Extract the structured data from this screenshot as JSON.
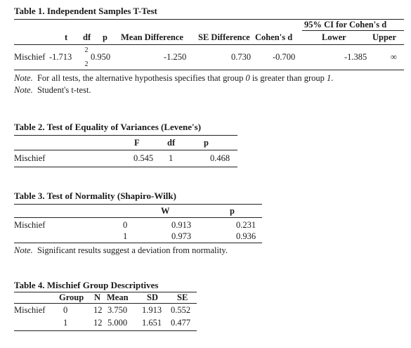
{
  "table1": {
    "title": "Table 1. Independent Samples T-Test",
    "ci_group": "95% CI for Cohen's d",
    "headers": {
      "t": "t",
      "df": "df",
      "p": "p",
      "mean_diff": "Mean Difference",
      "se_diff": "SE Difference",
      "cohens_d": "Cohen's d",
      "lower": "Lower",
      "upper": "Upper"
    },
    "row": {
      "label": "Mischief",
      "t": "-1.713",
      "df_top": "2",
      "df_bottom": "2",
      "p": "0.950",
      "mean_diff": "-1.250",
      "se_diff": "0.730",
      "cohens_d": "-0.700",
      "lower": "-1.385",
      "upper": "∞"
    },
    "notes": [
      {
        "lead": "Note.",
        "text_before": "For all tests, the alternative hypothesis specifies that group ",
        "g0": "0",
        "text_mid": " is greater than group ",
        "g1": "1",
        "text_after": "."
      },
      {
        "lead": "Note.",
        "text": "Student's t-test."
      }
    ]
  },
  "table2": {
    "title": "Table 2. Test of Equality of Variances (Levene's)",
    "headers": {
      "F": "F",
      "df": "df",
      "p": "p"
    },
    "row": {
      "label": "Mischief",
      "F": "0.545",
      "df": "1",
      "p": "0.468"
    }
  },
  "table3": {
    "title": "Table 3. Test of Normality (Shapiro-Wilk)",
    "headers": {
      "W": "W",
      "p": "p"
    },
    "rows": [
      {
        "label": "Mischief",
        "group": "0",
        "W": "0.913",
        "p": "0.231"
      },
      {
        "label": "",
        "group": "1",
        "W": "0.973",
        "p": "0.936"
      }
    ],
    "note": {
      "lead": "Note.",
      "text": "Significant results suggest a deviation from normality."
    }
  },
  "table4": {
    "title": "Table 4. Mischief Group Descriptives",
    "headers": {
      "group": "Group",
      "N": "N",
      "mean": "Mean",
      "SD": "SD",
      "SE": "SE"
    },
    "rows": [
      {
        "label": "Mischief",
        "group": "0",
        "N": "12",
        "mean": "3.750",
        "SD": "1.913",
        "SE": "0.552"
      },
      {
        "label": "",
        "group": "1",
        "N": "12",
        "mean": "5.000",
        "SD": "1.651",
        "SE": "0.477"
      }
    ]
  }
}
